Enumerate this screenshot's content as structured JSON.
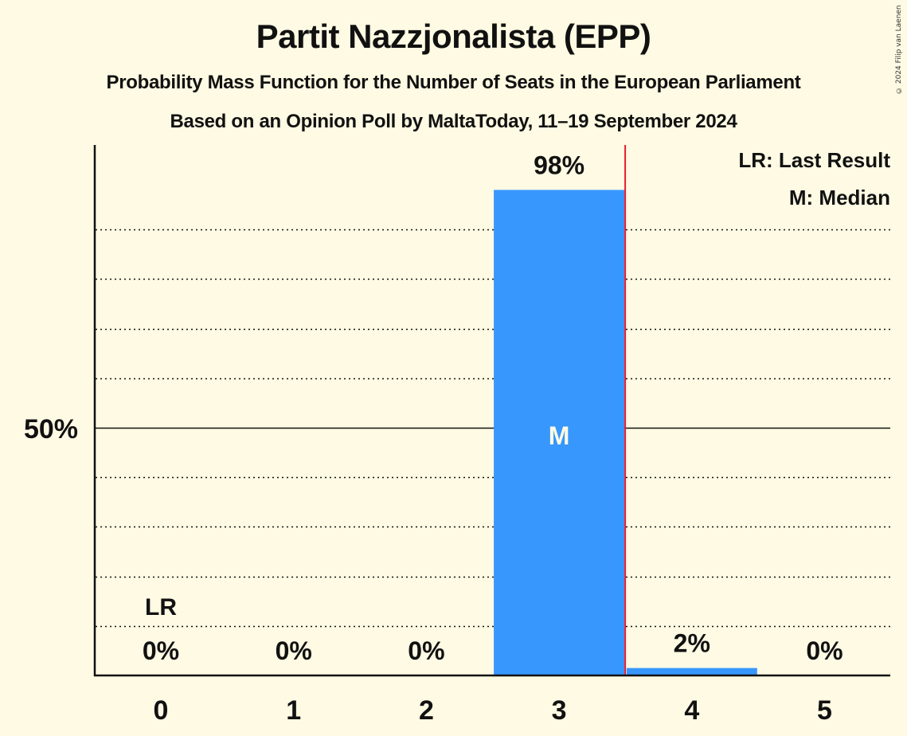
{
  "header": {
    "title": "Partit Nazzjonalista (EPP)",
    "subtitle": "Probability Mass Function for the Number of Seats in the European Parliament",
    "source": "Based on an Opinion Poll by MaltaToday, 11–19 September 2024",
    "copyright": "© 2024 Filip van Laenen"
  },
  "legend": {
    "last_result": "LR: Last Result",
    "median": "M: Median"
  },
  "axis": {
    "y_tick_label": "50%",
    "x_ticks": [
      "0",
      "1",
      "2",
      "3",
      "4",
      "5"
    ]
  },
  "markers": {
    "last_result_label": "LR",
    "last_result_seat": 0,
    "median_label": "M",
    "median_seat": 3
  },
  "colors": {
    "background": "#fefae3",
    "bar": "#3797fd",
    "median_line": "#e8192c",
    "axis": "#111111"
  },
  "chart_data": {
    "type": "bar",
    "title": "Partit Nazzjonalista (EPP)",
    "subtitle": "Probability Mass Function for the Number of Seats in the European Parliament",
    "source": "Based on an Opinion Poll by MaltaToday, 11–19 September 2024",
    "xlabel": "",
    "ylabel": "",
    "categories": [
      "0",
      "1",
      "2",
      "3",
      "4",
      "5"
    ],
    "values": [
      0,
      0,
      0,
      98,
      2,
      0
    ],
    "value_labels": [
      "0%",
      "0%",
      "0%",
      "98%",
      "2%",
      "0%"
    ],
    "bar_heights_pct": [
      0,
      0,
      0,
      98,
      1.5,
      0
    ],
    "ylim": [
      0,
      107
    ],
    "y_ticks_labeled": [
      50
    ],
    "gridlines_pct": [
      10,
      20,
      30,
      40,
      50,
      60,
      70,
      80,
      90
    ],
    "grid": true,
    "annotations": [
      {
        "seat": 0,
        "text": "LR",
        "meaning": "Last Result"
      },
      {
        "seat": 3,
        "text": "M",
        "meaning": "Median"
      }
    ],
    "legend": [
      "LR: Last Result",
      "M: Median"
    ],
    "legend_position": "top-right"
  }
}
